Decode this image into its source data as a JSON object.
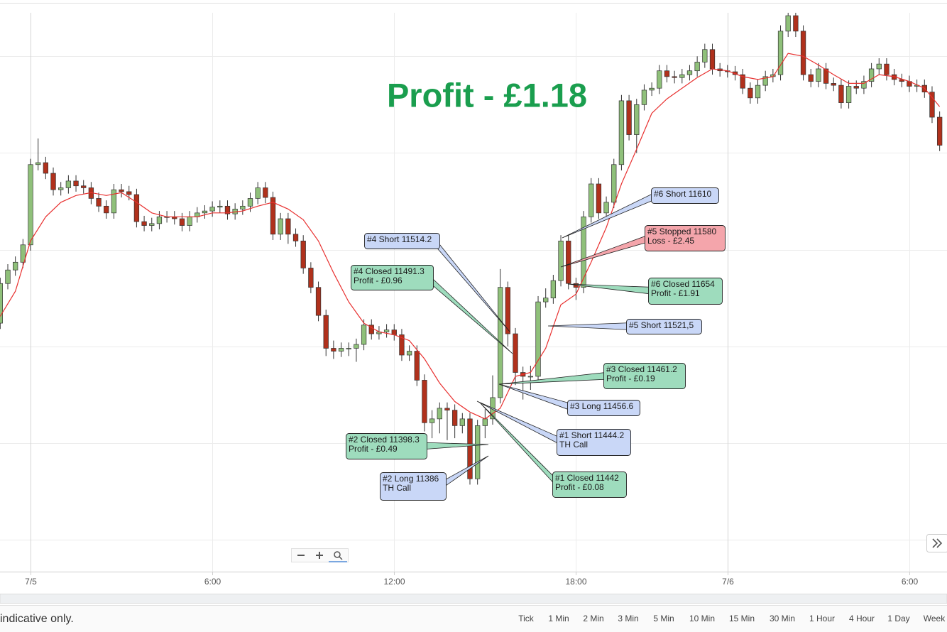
{
  "chart_data": {
    "type": "candlestick",
    "title": "Profit - £1.18",
    "title_color": "#1a9e4e",
    "up_color": "#8fc07a",
    "down_color": "#b0311c",
    "open": [
      11524,
      11565,
      11579,
      11587,
      11605,
      11688,
      11690,
      11679,
      11662,
      11664,
      11671,
      11666,
      11664,
      11653,
      11645,
      11638,
      11662,
      11660,
      11657,
      11629,
      11625,
      11627,
      11634,
      11634,
      11632,
      11625,
      11634,
      11638,
      11640,
      11644,
      11645,
      11637,
      11642,
      11645,
      11653,
      11664,
      11654,
      11616,
      11632,
      11616,
      11609,
      11581,
      11561,
      11532,
      11498,
      11495,
      11498,
      11498,
      11502,
      11522,
      11513,
      11515,
      11517,
      11512,
      11491,
      11495,
      11465,
      11421,
      11425,
      11436,
      11434,
      11418,
      11425,
      11363,
      11418,
      11425,
      11447,
      11561,
      11513,
      11473,
      11469,
      11469,
      11546,
      11550,
      11568,
      11609,
      11565,
      11561,
      11634,
      11668,
      11638,
      11649,
      11688,
      11754,
      11719,
      11750,
      11765,
      11767,
      11785,
      11779,
      11778,
      11781,
      11785,
      11794,
      11807,
      11787,
      11785,
      11784,
      11781,
      11767,
      11757,
      11770,
      11779,
      11781,
      11826,
      11842,
      11826,
      11781,
      11774,
      11787,
      11772,
      11770,
      11752,
      11769,
      11767,
      11774,
      11787,
      11792,
      11781,
      11776,
      11774,
      11769,
      11770,
      11763,
      11737
    ],
    "high": [
      11571,
      11585,
      11593,
      11611,
      11694,
      11715,
      11696,
      11685,
      11670,
      11677,
      11677,
      11672,
      11670,
      11659,
      11651,
      11668,
      11668,
      11666,
      11663,
      11635,
      11633,
      11640,
      11640,
      11640,
      11638,
      11640,
      11644,
      11646,
      11650,
      11651,
      11651,
      11648,
      11651,
      11659,
      11670,
      11670,
      11660,
      11638,
      11638,
      11622,
      11615,
      11587,
      11567,
      11538,
      11506,
      11504,
      11504,
      11508,
      11528,
      11528,
      11521,
      11523,
      11523,
      11518,
      11501,
      11501,
      11471,
      11434,
      11442,
      11442,
      11440,
      11431,
      11431,
      11424,
      11435,
      11470,
      11580,
      11567,
      11519,
      11479,
      11480,
      11552,
      11560,
      11574,
      11615,
      11615,
      11571,
      11640,
      11674,
      11674,
      11655,
      11694,
      11760,
      11760,
      11756,
      11771,
      11773,
      11791,
      11791,
      11785,
      11787,
      11791,
      11800,
      11813,
      11813,
      11793,
      11791,
      11790,
      11787,
      11773,
      11776,
      11785,
      11787,
      11832,
      11845,
      11845,
      11832,
      11787,
      11793,
      11793,
      11778,
      11776,
      11775,
      11775,
      11780,
      11793,
      11798,
      11798,
      11787,
      11782,
      11780,
      11776,
      11776,
      11769,
      11743
    ],
    "low": [
      11518,
      11559,
      11573,
      11581,
      11599,
      11682,
      11673,
      11656,
      11656,
      11658,
      11660,
      11658,
      11647,
      11639,
      11632,
      11632,
      11654,
      11651,
      11623,
      11619,
      11619,
      11621,
      11628,
      11626,
      11619,
      11619,
      11628,
      11632,
      11634,
      11638,
      11631,
      11631,
      11636,
      11639,
      11647,
      11648,
      11610,
      11610,
      11606,
      11603,
      11575,
      11555,
      11526,
      11490,
      11487,
      11489,
      11490,
      11484,
      11496,
      11507,
      11507,
      11509,
      11506,
      11485,
      11485,
      11459,
      11412,
      11405,
      11410,
      11403,
      11405,
      11410,
      11357,
      11357,
      11405,
      11419,
      11441,
      11500,
      11460,
      11445,
      11455,
      11463,
      11540,
      11544,
      11562,
      11559,
      11548,
      11555,
      11628,
      11632,
      11632,
      11643,
      11682,
      11713,
      11700,
      11744,
      11759,
      11761,
      11773,
      11772,
      11772,
      11775,
      11779,
      11788,
      11781,
      11779,
      11778,
      11775,
      11761,
      11751,
      11751,
      11764,
      11773,
      11775,
      11820,
      11820,
      11775,
      11768,
      11768,
      11766,
      11764,
      11746,
      11746,
      11761,
      11761,
      11768,
      11781,
      11775,
      11770,
      11768,
      11763,
      11763,
      11757,
      11731,
      11702
    ],
    "close": [
      11565,
      11579,
      11587,
      11605,
      11688,
      11690,
      11679,
      11662,
      11664,
      11671,
      11666,
      11664,
      11653,
      11645,
      11638,
      11662,
      11660,
      11657,
      11629,
      11625,
      11627,
      11634,
      11634,
      11632,
      11625,
      11634,
      11638,
      11640,
      11644,
      11645,
      11637,
      11642,
      11645,
      11653,
      11664,
      11654,
      11616,
      11632,
      11616,
      11609,
      11581,
      11561,
      11532,
      11498,
      11495,
      11498,
      11498,
      11502,
      11522,
      11513,
      11515,
      11517,
      11512,
      11491,
      11495,
      11465,
      11421,
      11425,
      11436,
      11434,
      11418,
      11425,
      11363,
      11418,
      11425,
      11447,
      11561,
      11513,
      11473,
      11469,
      11469,
      11546,
      11550,
      11568,
      11609,
      11565,
      11561,
      11634,
      11668,
      11638,
      11649,
      11688,
      11754,
      11719,
      11750,
      11765,
      11767,
      11785,
      11779,
      11778,
      11781,
      11785,
      11794,
      11807,
      11787,
      11785,
      11784,
      11781,
      11767,
      11757,
      11770,
      11779,
      11781,
      11826,
      11842,
      11826,
      11781,
      11774,
      11787,
      11772,
      11770,
      11752,
      11769,
      11767,
      11774,
      11787,
      11792,
      11781,
      11776,
      11774,
      11769,
      11770,
      11763,
      11737,
      11708
    ],
    "ma": {
      "color": "#e8302f",
      "x": [
        0,
        2,
        4,
        6,
        8,
        10,
        12,
        14,
        16,
        18,
        20,
        22,
        24,
        26,
        28,
        30,
        32,
        34,
        36,
        38,
        40,
        42,
        44,
        46,
        48,
        50,
        52,
        54,
        56,
        58,
        60,
        62,
        64,
        66,
        68,
        70,
        72,
        74,
        76,
        78,
        80,
        82,
        84,
        86,
        88,
        90,
        92,
        94,
        96,
        98,
        100,
        102,
        104,
        106,
        108,
        110,
        112,
        114,
        116,
        118,
        120,
        122,
        124
      ],
      "values": [
        11531,
        11557,
        11609,
        11634,
        11649,
        11656,
        11659,
        11656,
        11659,
        11649,
        11638,
        11634,
        11634,
        11634,
        11638,
        11638,
        11640,
        11645,
        11649,
        11642,
        11631,
        11609,
        11576,
        11546,
        11524,
        11515,
        11512,
        11506,
        11487,
        11462,
        11443,
        11432,
        11425,
        11436,
        11469,
        11473,
        11498,
        11543,
        11554,
        11587,
        11623,
        11668,
        11704,
        11741,
        11756,
        11767,
        11778,
        11787,
        11785,
        11779,
        11776,
        11779,
        11803,
        11800,
        11791,
        11781,
        11772,
        11772,
        11781,
        11779,
        11774,
        11767,
        11748
      ]
    },
    "ylim": [
      11267,
      11845
    ],
    "ygrid": [
      11300,
      11400,
      11500,
      11600,
      11700,
      11800
    ],
    "grid": true,
    "xlim": [
      -0.03,
      124.97
    ],
    "xticks": [
      {
        "value": 4,
        "label": "7/5"
      },
      {
        "value": 28,
        "label": "6:00"
      },
      {
        "value": 52,
        "label": "12:00"
      },
      {
        "value": 76,
        "label": "18:00"
      },
      {
        "value": 96,
        "label": "7/6"
      },
      {
        "value": 120,
        "label": "6:00"
      }
    ],
    "annotations": [
      {
        "lines": [
          "#4 Short 11514.2"
        ],
        "color": "#c9d7f7"
      },
      {
        "lines": [
          "#4 Closed 11491.3",
          "Profit - £0.96"
        ],
        "color": "#9edcbd"
      },
      {
        "lines": [
          "#6 Short 11610"
        ],
        "color": "#c9d7f7"
      },
      {
        "lines": [
          "#5 Stopped 11580",
          "Loss - £2.45"
        ],
        "color": "#f4a5ab"
      },
      {
        "lines": [
          "#6 Closed 11654",
          "Profit - £1.91"
        ],
        "color": "#9edcbd"
      },
      {
        "lines": [
          "#5 Short 11521,5"
        ],
        "color": "#c9d7f7"
      },
      {
        "lines": [
          "#3 Closed 11461.2",
          "Profit - £0.19"
        ],
        "color": "#9edcbd"
      },
      {
        "lines": [
          "#3 Long 11456.6"
        ],
        "color": "#c9d7f7"
      },
      {
        "lines": [
          "#1 Short 11444.2",
          "TH Call"
        ],
        "color": "#c9d7f7"
      },
      {
        "lines": [
          "#1 Closed 11442",
          "Profit - £0.08"
        ],
        "color": "#9edcbd"
      },
      {
        "lines": [
          "#2 Closed 11398.3",
          "Profit - £0.49"
        ],
        "color": "#9edcbd"
      },
      {
        "lines": [
          "#2 Long 11386",
          "TH Call"
        ],
        "color": "#c9d7f7"
      }
    ]
  },
  "footer": {
    "note": "indicative only.",
    "timeframes": [
      "Tick",
      "1 Min",
      "2 Min",
      "3 Min",
      "5 Min",
      "10 Min",
      "15 Min",
      "30 Min",
      "1 Hour",
      "4 Hour",
      "1 Day",
      "Week"
    ]
  }
}
